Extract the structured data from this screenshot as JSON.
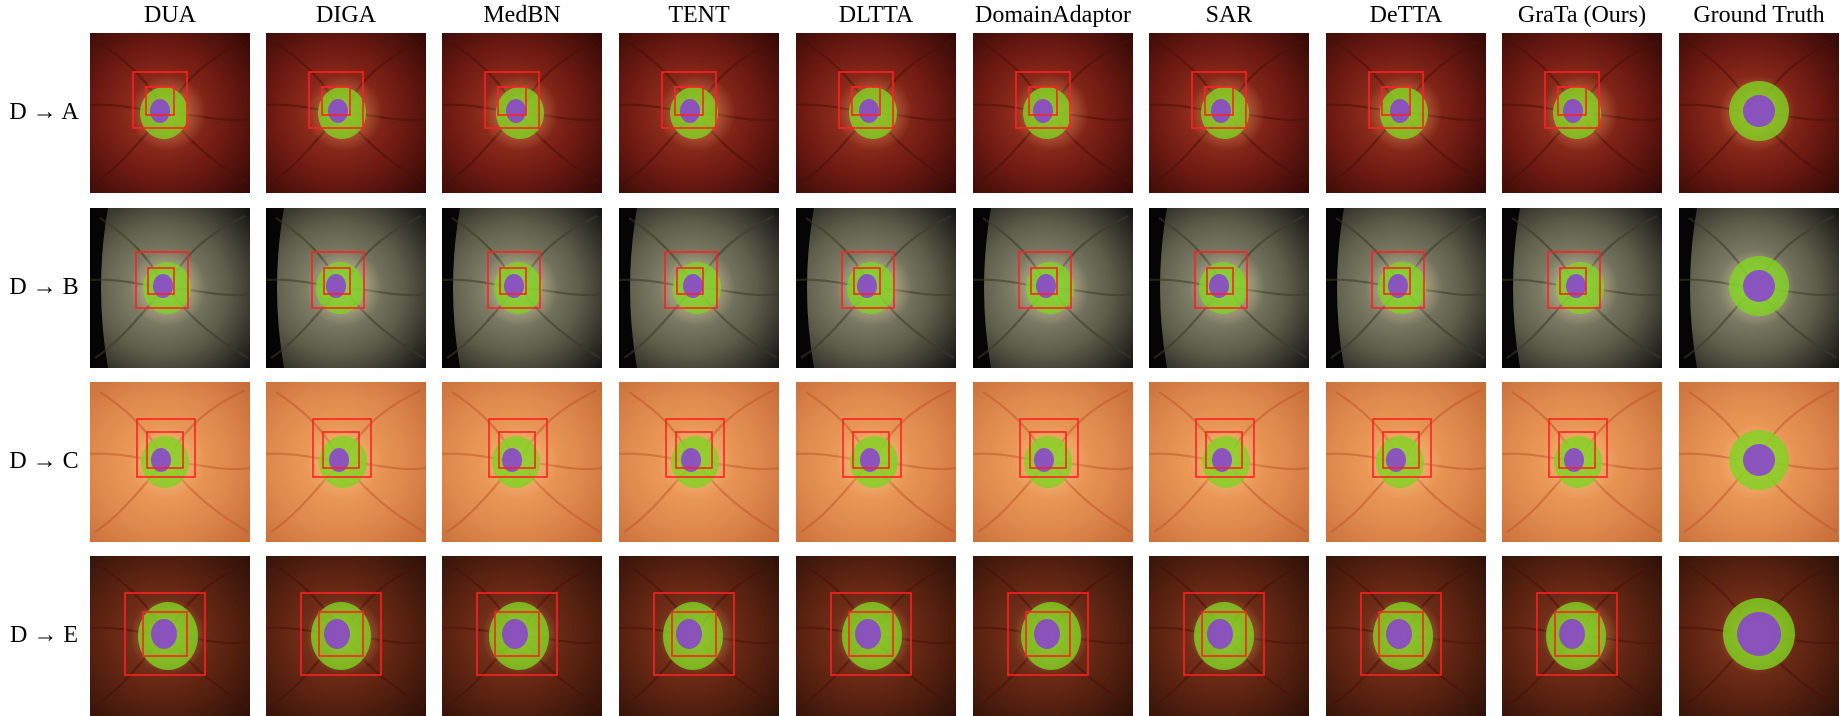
{
  "columns": [
    "DUA",
    "DIGA",
    "MedBN",
    "TENT",
    "DLTTA",
    "DomainAdaptor",
    "SAR",
    "DeTTA",
    "GraTa (Ours)",
    "Ground Truth"
  ],
  "rows": [
    {
      "label": "D → A",
      "fundus_colors": [
        "#a63a22",
        "#6e1a12",
        "#2f0805"
      ],
      "disc_color": "#e8a06a"
    },
    {
      "label": "D → B",
      "fundus_colors": [
        "#9c9a80",
        "#5e5d4a",
        "#101010"
      ],
      "disc_color": "#e6d3a0"
    },
    {
      "label": "D → C",
      "fundus_colors": [
        "#f4a660",
        "#e08a4e",
        "#c46a38"
      ],
      "disc_color": "#f5c38a"
    },
    {
      "label": "D → E",
      "fundus_colors": [
        "#8a3a20",
        "#5a2210",
        "#2a1008"
      ],
      "disc_color": "#f0b070"
    }
  ],
  "overlay_colors": {
    "disc": "#7ed321",
    "cup": "#8a3fd6",
    "bbox": "#ff2020"
  }
}
